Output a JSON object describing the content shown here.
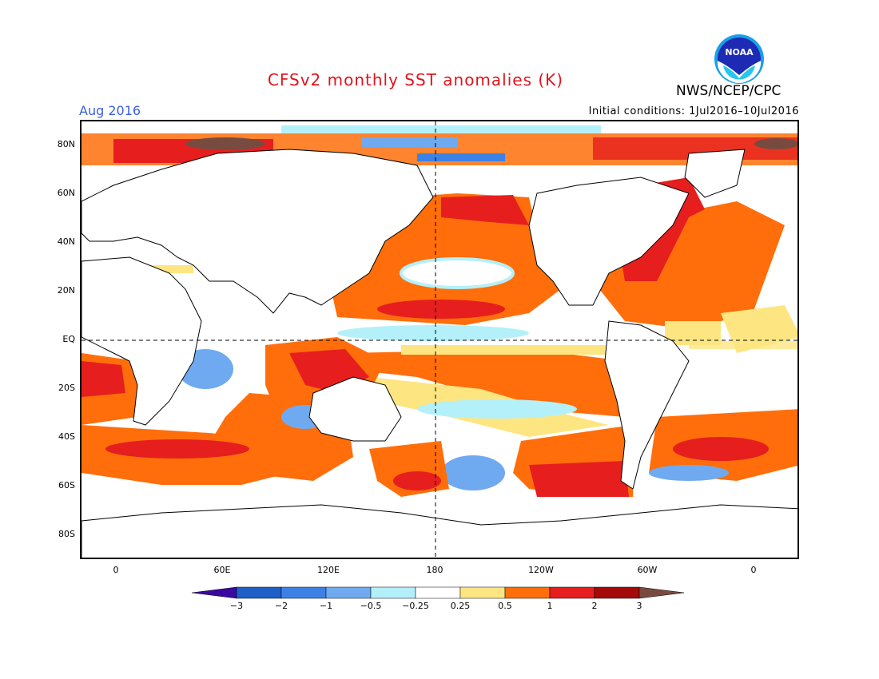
{
  "title": "CFSv2 monthly SST anomalies (K)",
  "organization": "NWS/NCEP/CPC",
  "logo_text": "NOAA",
  "valid_month": "Aug 2016",
  "initial_conditions": "Initial conditions: 1Jul2016–10Jul2016",
  "map": {
    "y_axis_labels": [
      "80N",
      "60N",
      "40N",
      "20N",
      "EQ",
      "20S",
      "40S",
      "60S",
      "80S"
    ],
    "x_axis_labels": [
      "0",
      "60E",
      "120E",
      "180",
      "120W",
      "60W",
      "0"
    ]
  },
  "colorbar": {
    "tick_labels": [
      "−3",
      "−2",
      "−1",
      "−0.5",
      "−0.25",
      "0.25",
      "0.5",
      "1",
      "2",
      "3"
    ],
    "colors": [
      "#3a0aa0",
      "#1f60c8",
      "#3c82e6",
      "#6faaf0",
      "#b4f0fa",
      "#ffffff",
      "#fde682",
      "#ff6e0a",
      "#e61e1e",
      "#a50a0a",
      "#784b41"
    ]
  }
}
